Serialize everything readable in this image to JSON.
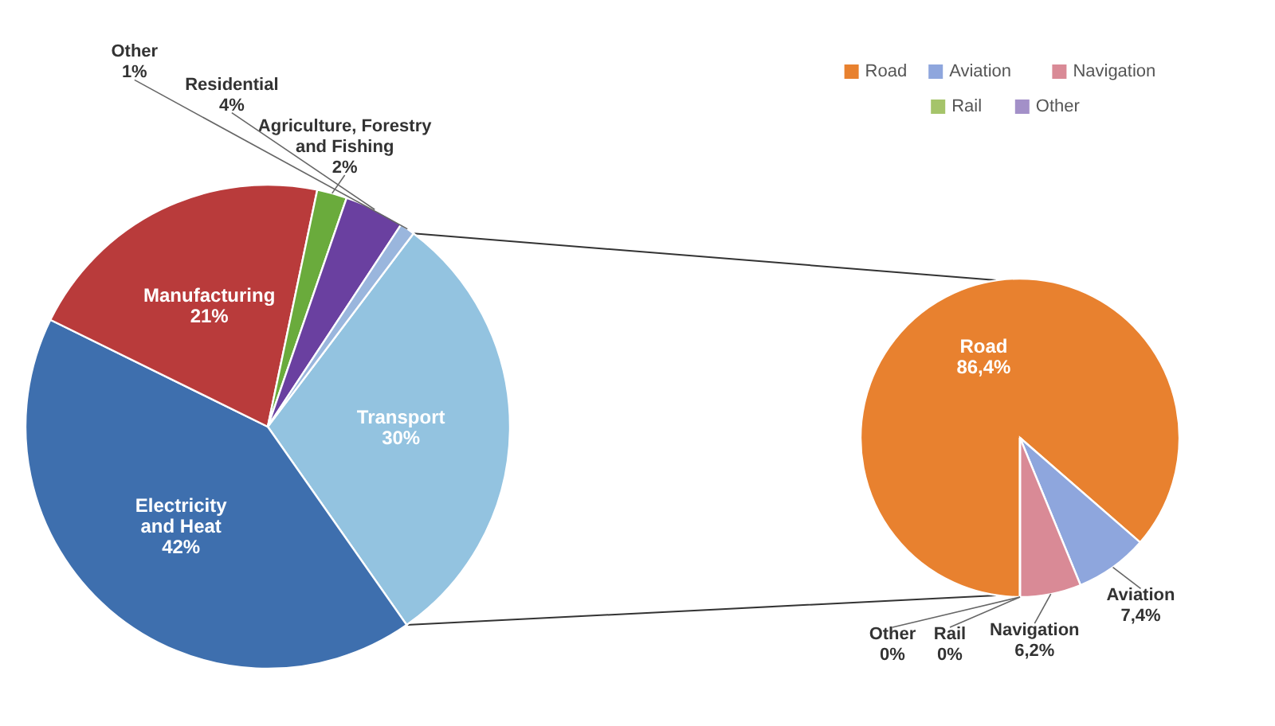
{
  "chart_data": [
    {
      "type": "pie",
      "categories": [
        "Transport",
        "Electricity and Heat",
        "Manufacturing",
        "Agriculture, Forestry and Fishing",
        "Residential",
        "Other"
      ],
      "values": [
        30,
        42,
        21,
        2,
        4,
        1
      ],
      "value_labels": [
        "30%",
        "42%",
        "21%",
        "2%",
        "4%",
        "1%"
      ],
      "colors": [
        "#93c3e0",
        "#3e6fae",
        "#b93b3b",
        "#6aab3c",
        "#6a40a0",
        "#9ab6dd"
      ]
    },
    {
      "type": "pie",
      "categories": [
        "Road",
        "Aviation",
        "Navigation",
        "Rail",
        "Other"
      ],
      "values": [
        86.4,
        7.4,
        6.2,
        0,
        0
      ],
      "value_labels": [
        "86,4%",
        "7,4%",
        "6,2%",
        "0%",
        "0%"
      ],
      "colors": [
        "#e8812f",
        "#8ea6dd",
        "#d98a96",
        "#a5c46a",
        "#a390c8"
      ],
      "legend": "top"
    }
  ]
}
